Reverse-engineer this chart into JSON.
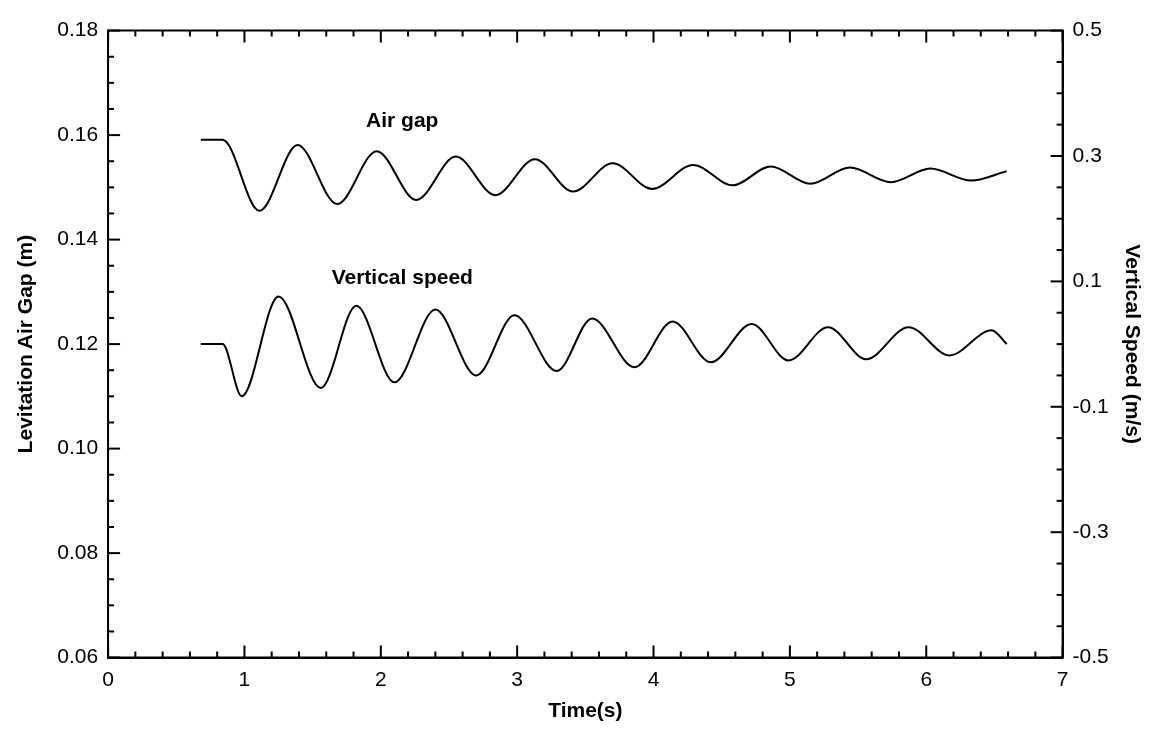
{
  "chart_data": {
    "type": "line",
    "xlabel": "Time(s)",
    "ylabel": "Levitation Air Gap (m)",
    "y2label": "Vertical Speed (m/s)",
    "xlim": [
      0,
      7
    ],
    "xticks": [
      0,
      {
        "value": 0.2,
        "label": null
      },
      {
        "value": 0.4,
        "label": null
      },
      {
        "value": 0.6,
        "label": null
      },
      {
        "value": 0.8,
        "label": null
      },
      1,
      {
        "value": 1.2,
        "label": null
      },
      {
        "value": 1.4,
        "label": null
      },
      {
        "value": 1.6,
        "label": null
      },
      {
        "value": 1.8,
        "label": null
      },
      2,
      {
        "value": 2.2,
        "label": null
      },
      {
        "value": 2.4,
        "label": null
      },
      {
        "value": 2.6,
        "label": null
      },
      {
        "value": 2.8,
        "label": null
      },
      3,
      {
        "value": 3.2,
        "label": null
      },
      {
        "value": 3.4,
        "label": null
      },
      {
        "value": 3.6,
        "label": null
      },
      {
        "value": 3.8,
        "label": null
      },
      4,
      {
        "value": 4.2,
        "label": null
      },
      {
        "value": 4.4,
        "label": null
      },
      {
        "value": 4.6,
        "label": null
      },
      {
        "value": 4.8,
        "label": null
      },
      5,
      {
        "value": 5.2,
        "label": null
      },
      {
        "value": 5.4,
        "label": null
      },
      {
        "value": 5.6,
        "label": null
      },
      {
        "value": 5.8,
        "label": null
      },
      6,
      {
        "value": 6.2,
        "label": null
      },
      {
        "value": 6.4,
        "label": null
      },
      {
        "value": 6.6,
        "label": null
      },
      {
        "value": 6.8,
        "label": null
      },
      7
    ],
    "ylim": [
      0.06,
      0.18
    ],
    "yticks": [
      0.06,
      {
        "value": 0.065,
        "label": null
      },
      {
        "value": 0.07,
        "label": null
      },
      {
        "value": 0.075,
        "label": null
      },
      0.08,
      {
        "value": 0.085,
        "label": null
      },
      {
        "value": 0.09,
        "label": null
      },
      {
        "value": 0.095,
        "label": null
      },
      {
        "value": 0.1,
        "label": "0.10"
      },
      {
        "value": 0.105,
        "label": null
      },
      {
        "value": 0.11,
        "label": null
      },
      {
        "value": 0.115,
        "label": null
      },
      0.12,
      {
        "value": 0.125,
        "label": null
      },
      {
        "value": 0.13,
        "label": null
      },
      {
        "value": 0.135,
        "label": null
      },
      0.14,
      {
        "value": 0.145,
        "label": null
      },
      {
        "value": 0.15,
        "label": null
      },
      {
        "value": 0.155,
        "label": null
      },
      0.16,
      {
        "value": 0.165,
        "label": null
      },
      {
        "value": 0.17,
        "label": null
      },
      {
        "value": 0.175,
        "label": null
      },
      0.18
    ],
    "y2lim": [
      -0.5,
      0.5
    ],
    "y2ticks": [
      -0.5,
      {
        "value": -0.45,
        "label": null
      },
      {
        "value": -0.4,
        "label": null
      },
      {
        "value": -0.35,
        "label": null
      },
      -0.3,
      {
        "value": -0.25,
        "label": null
      },
      {
        "value": -0.2,
        "label": null
      },
      {
        "value": -0.15,
        "label": null
      },
      -0.1,
      {
        "value": -0.05,
        "label": null
      },
      {
        "value": 0,
        "label": null
      },
      {
        "value": 0.05,
        "label": null
      },
      0.1,
      {
        "value": 0.15,
        "label": null
      },
      {
        "value": 0.2,
        "label": null
      },
      {
        "value": 0.25,
        "label": null
      },
      0.3,
      {
        "value": 0.35,
        "label": null
      },
      {
        "value": 0.4,
        "label": null
      },
      {
        "value": 0.45,
        "label": null
      },
      0.5
    ],
    "grid": false,
    "legend": false,
    "marker": "none",
    "line_style": "solid",
    "series": [
      {
        "name": "Air gap",
        "color": "#000000",
        "x": [
          0.68,
          0.84,
          1.11,
          1.39,
          1.68,
          1.97,
          2.26,
          2.55,
          2.84,
          3.13,
          3.41,
          3.7,
          3.99,
          4.29,
          4.58,
          4.86,
          5.15,
          5.44,
          5.74,
          6.03,
          6.33,
          6.59
        ],
        "values": [
          0.1591,
          0.1591,
          0.1455,
          0.1581,
          0.1468,
          0.1569,
          0.1476,
          0.1559,
          0.1485,
          0.1554,
          0.1492,
          0.1546,
          0.1497,
          0.1543,
          0.1504,
          0.154,
          0.1507,
          0.1538,
          0.151,
          0.1536,
          0.1513,
          0.1531
        ]
      },
      {
        "name": "Vertical speed",
        "color": "#000000",
        "axis": "y2",
        "x": [
          0.68,
          0.84,
          0.98,
          1.25,
          1.56,
          1.82,
          2.1,
          2.4,
          2.7,
          2.98,
          3.29,
          3.55,
          3.86,
          4.14,
          4.42,
          4.72,
          4.99,
          5.28,
          5.56,
          5.87,
          6.17,
          6.48,
          6.59
        ],
        "values": [
          0.0,
          0.0,
          -0.083,
          0.076,
          -0.07,
          0.061,
          -0.061,
          0.055,
          -0.05,
          0.046,
          -0.043,
          0.041,
          -0.037,
          0.036,
          -0.029,
          0.032,
          -0.026,
          0.027,
          -0.024,
          0.027,
          -0.018,
          0.022,
          0.0
        ]
      }
    ]
  }
}
